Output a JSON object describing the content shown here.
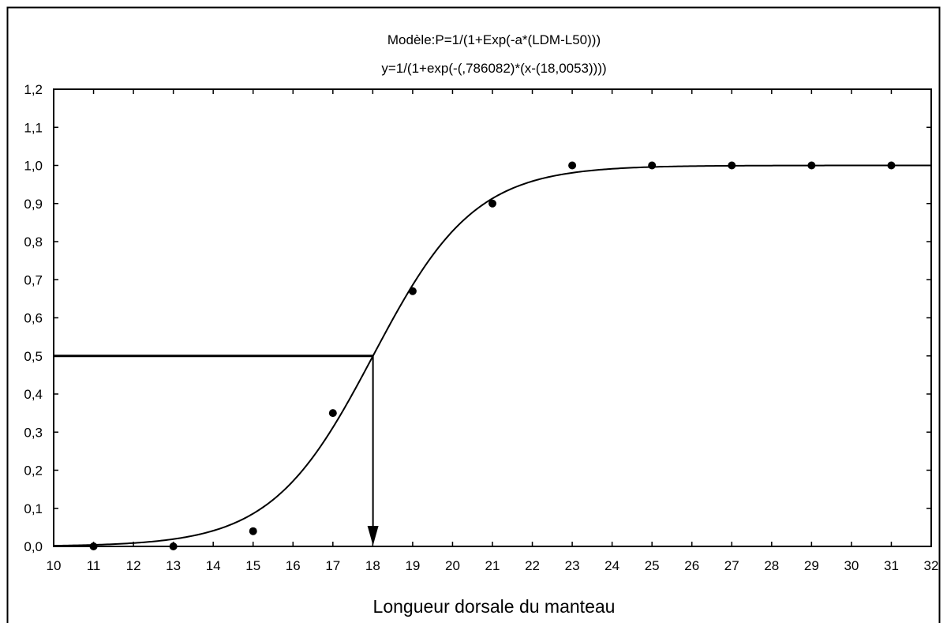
{
  "chart_data": {
    "type": "scatter",
    "title": "Modèle:P=1/(1+Exp(-a*(LDM-L50)))",
    "subtitle": "y=1/(1+exp(-(,786082)*(x-(18,0053))))",
    "xlabel": "Longueur dorsale du manteau",
    "ylabel": "",
    "xlim": [
      10,
      32
    ],
    "ylim": [
      0,
      1.2
    ],
    "x_ticks": [
      "10",
      "11",
      "12",
      "13",
      "14",
      "15",
      "16",
      "17",
      "18",
      "19",
      "20",
      "21",
      "22",
      "23",
      "24",
      "25",
      "26",
      "27",
      "28",
      "29",
      "30",
      "31",
      "32"
    ],
    "y_ticks": [
      "0,0",
      "0,1",
      "0,2",
      "0,3",
      "0,4",
      "0,5",
      "0,6",
      "0,7",
      "0,8",
      "0,9",
      "1,0",
      "1,1",
      "1,2"
    ],
    "grid": false,
    "legend": "none",
    "series": [
      {
        "type": "scatter",
        "x": [
          11,
          13,
          15,
          17,
          19,
          21,
          23,
          25,
          27,
          29,
          31
        ],
        "y": [
          0.0,
          0.0,
          0.04,
          0.35,
          0.67,
          0.9,
          1.0,
          1.0,
          1.0,
          1.0,
          1.0
        ],
        "color": "#000000"
      },
      {
        "type": "line",
        "model": "logistic",
        "a": 0.786082,
        "L50": 18.0053,
        "color": "#000000"
      }
    ],
    "annotations": [
      {
        "type": "reference-lines",
        "x": 18.0053,
        "y": 0.5,
        "arrow": "down-to-x-axis"
      }
    ]
  }
}
